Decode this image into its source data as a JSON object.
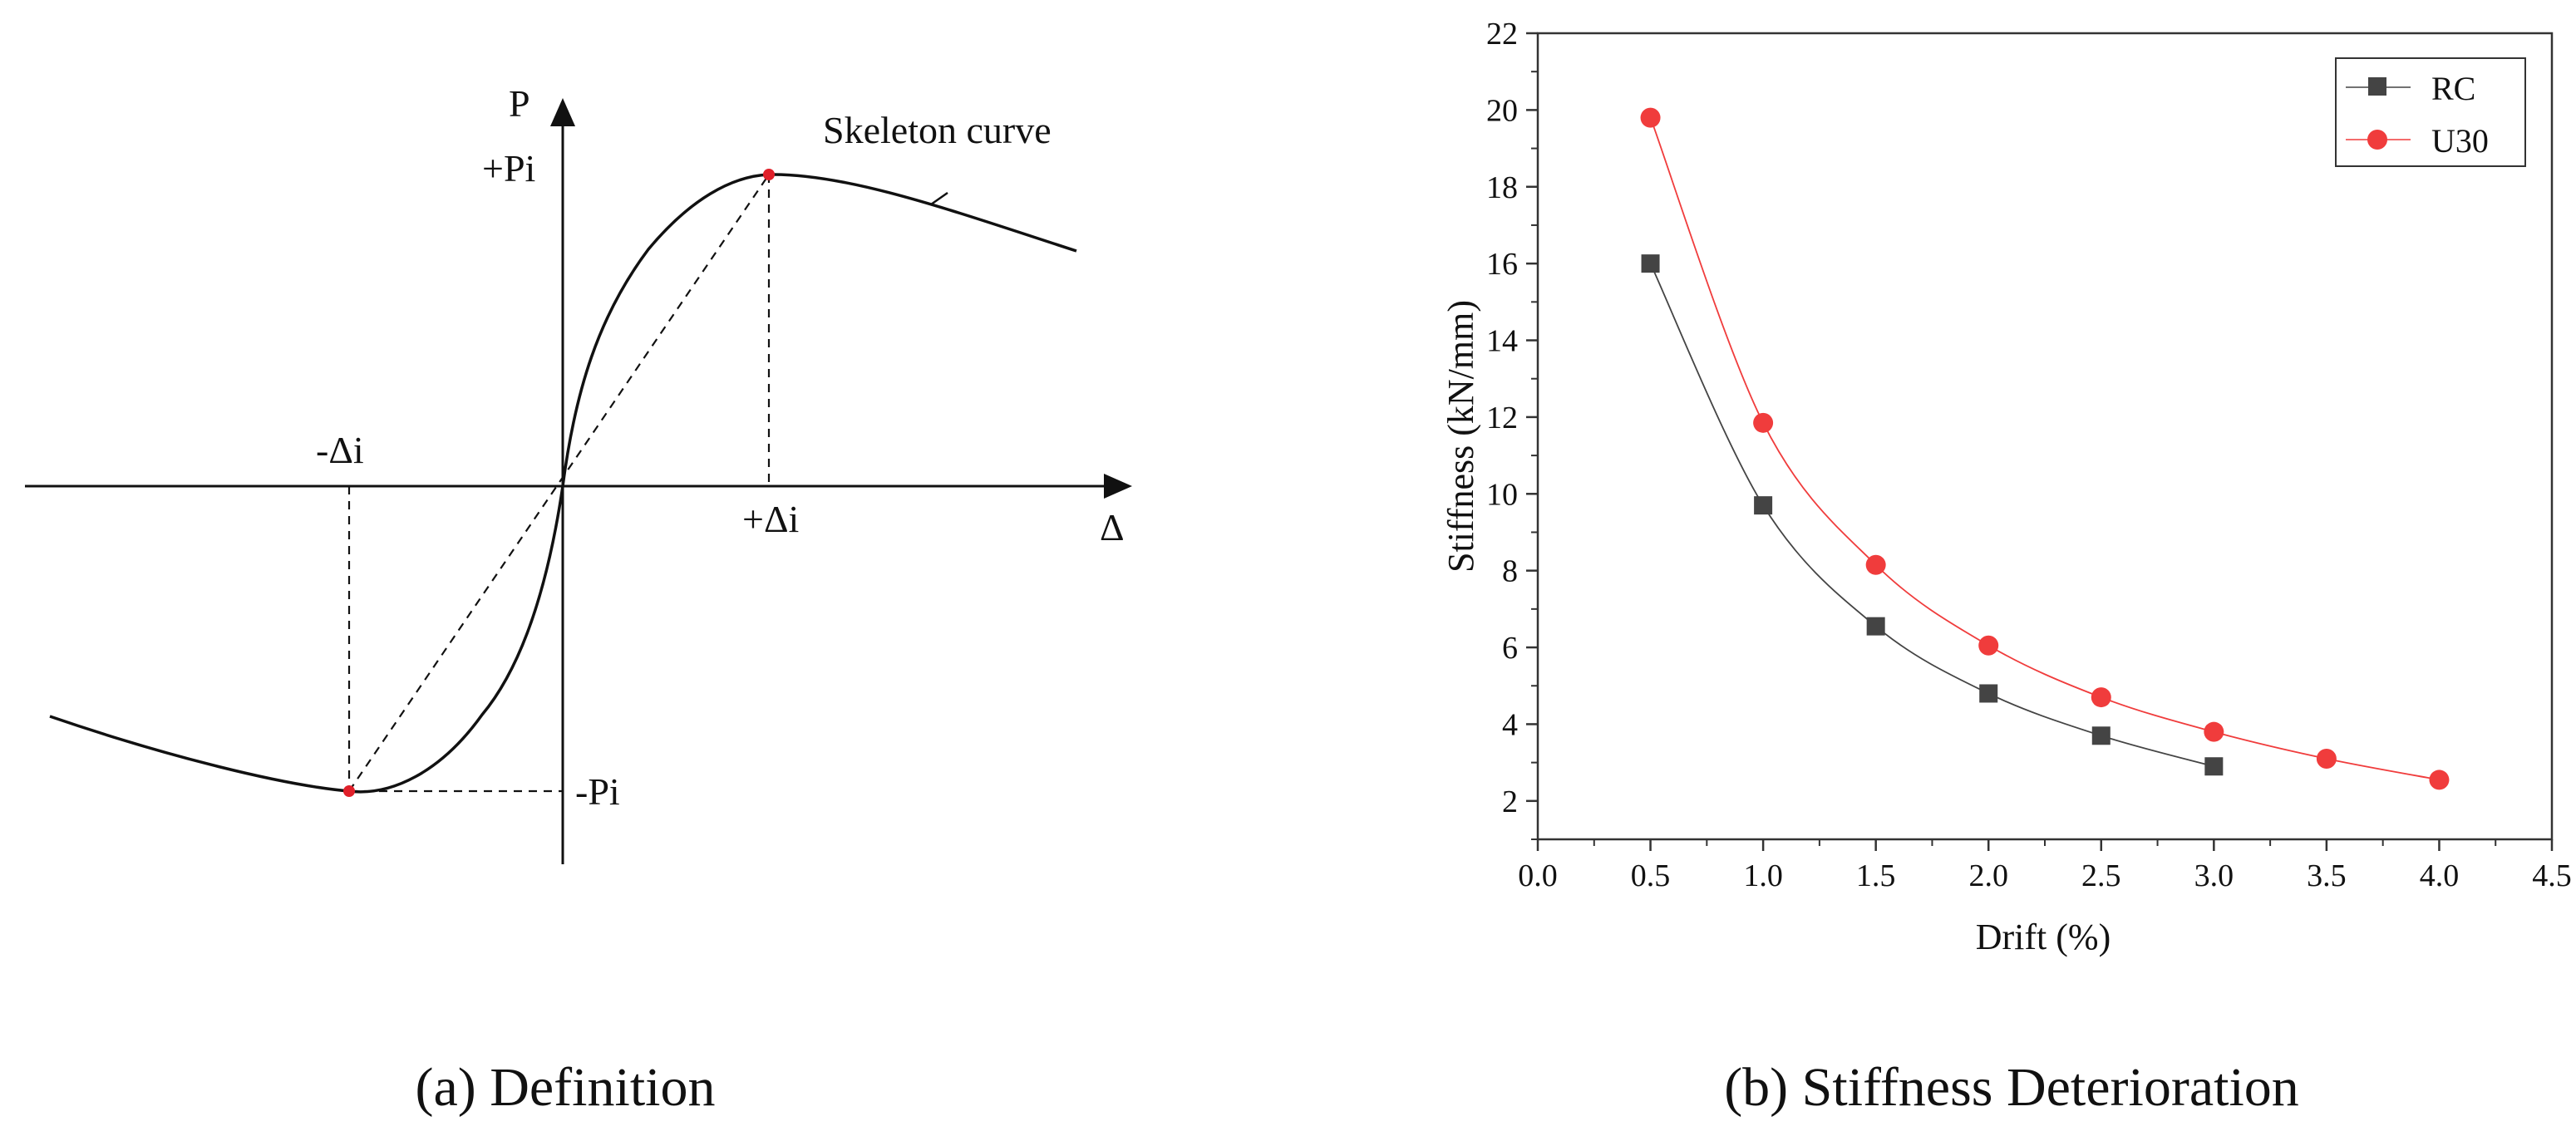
{
  "panel_a": {
    "caption": "(a) Definition",
    "axis_p_label": "P",
    "axis_delta_label": "Δ",
    "plus_p_label": "+Pi",
    "minus_p_label": "-Pi",
    "plus_delta_label": "+Δi",
    "minus_delta_label": "-Δi",
    "curve_label": "Skeleton curve",
    "peak_marker_color": "#e0202a"
  },
  "panel_b": {
    "caption": "(b) Stiffness Deterioration"
  },
  "chart_data": {
    "type": "scatter",
    "title": "",
    "xlabel": "Drift (%)",
    "ylabel": "Stiffness (kN/mm)",
    "xlim": [
      0.0,
      4.5
    ],
    "ylim": [
      1.0,
      22.0
    ],
    "xticks": [
      0.0,
      0.5,
      1.0,
      1.5,
      2.0,
      2.5,
      3.0,
      3.5,
      4.0,
      4.5
    ],
    "xtick_labels": [
      "0.0",
      "0.5",
      "1.0",
      "1.5",
      "2.0",
      "2.5",
      "3.0",
      "3.5",
      "4.0",
      "4.5"
    ],
    "yticks": [
      2,
      4,
      6,
      8,
      10,
      12,
      14,
      16,
      18,
      20,
      22
    ],
    "ytick_labels": [
      "2",
      "4",
      "6",
      "8",
      "10",
      "12",
      "14",
      "16",
      "18",
      "20",
      "22"
    ],
    "grid": false,
    "legend_position": "top-right",
    "series": [
      {
        "name": "RC",
        "marker": "square",
        "color": "#444444",
        "x": [
          0.5,
          1.0,
          1.5,
          2.0,
          2.5,
          3.0
        ],
        "y": [
          16.0,
          9.7,
          6.55,
          4.8,
          3.7,
          2.9
        ]
      },
      {
        "name": "U30",
        "marker": "circle",
        "color": "#f03c3c",
        "x": [
          0.5,
          1.0,
          1.5,
          2.0,
          2.5,
          3.0,
          3.5,
          4.0
        ],
        "y": [
          19.8,
          11.85,
          8.15,
          6.05,
          4.7,
          3.8,
          3.1,
          2.55
        ]
      }
    ]
  }
}
